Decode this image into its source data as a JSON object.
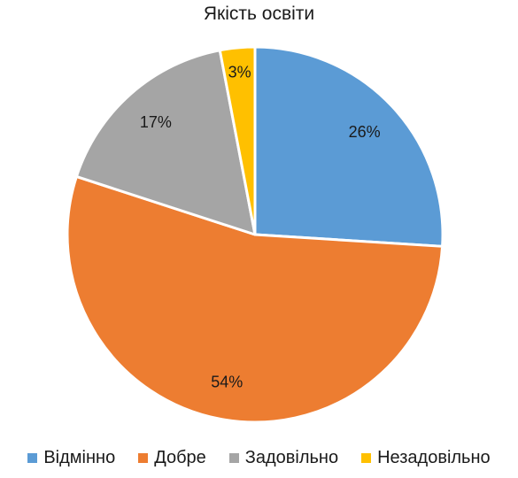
{
  "chart_data": {
    "type": "pie",
    "title": "Якість освіти",
    "categories": [
      "Відмінно",
      "Добре",
      "Задовільно",
      "Незадовільно"
    ],
    "values": [
      26,
      54,
      17,
      3
    ],
    "labels": [
      "26%",
      "54%",
      "17%",
      "3%"
    ],
    "colors": [
      "#5B9BD5",
      "#ED7D31",
      "#A5A5A5",
      "#FFC000"
    ],
    "legend_position": "bottom"
  }
}
